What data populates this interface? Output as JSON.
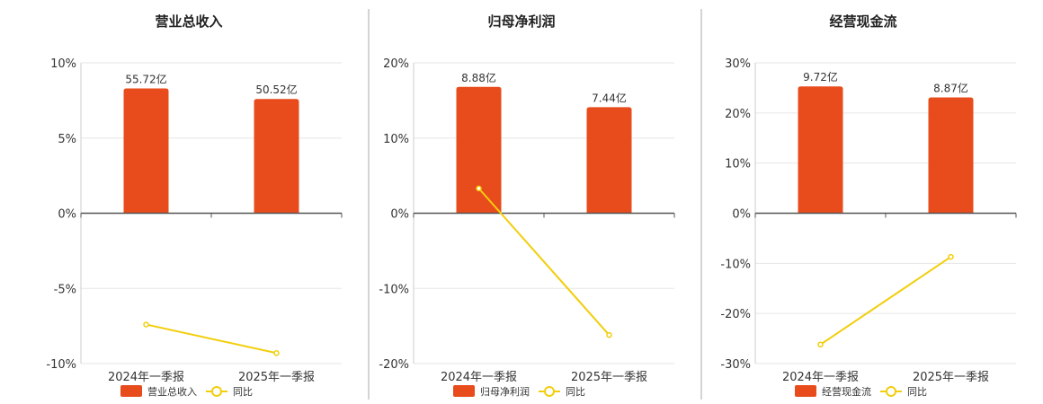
{
  "colors": {
    "bar": "#E84C1C",
    "line": "#F2CE0C",
    "grid": "#E6E6E6",
    "axis": "#555555",
    "divider": "#AAAAAA"
  },
  "chart_data": [
    {
      "type": "bar",
      "title": "营业总收入",
      "categories": [
        "2024年一季报",
        "2025年一季报"
      ],
      "series": [
        {
          "name": "营业总收入",
          "type": "bar",
          "values": [
            8.3,
            7.6
          ],
          "labels": [
            "55.72亿",
            "50.52亿"
          ]
        },
        {
          "name": "同比",
          "type": "line",
          "values": [
            -7.4,
            -9.3
          ]
        }
      ],
      "ylim": [
        -10,
        10
      ],
      "yticks": [
        -10,
        -5,
        0,
        5,
        10
      ],
      "ytick_labels": [
        "-10%",
        "-5%",
        "0%",
        "5%",
        "10%"
      ],
      "grid": true,
      "legend": "bottom"
    },
    {
      "type": "bar",
      "title": "归母净利润",
      "categories": [
        "2024年一季报",
        "2025年一季报"
      ],
      "series": [
        {
          "name": "归母净利润",
          "type": "bar",
          "values": [
            16.8,
            14.1
          ],
          "labels": [
            "8.88亿",
            "7.44亿"
          ]
        },
        {
          "name": "同比",
          "type": "line",
          "values": [
            3.3,
            -16.2
          ]
        }
      ],
      "ylim": [
        -20,
        20
      ],
      "yticks": [
        -20,
        -10,
        0,
        10,
        20
      ],
      "ytick_labels": [
        "-20%",
        "-10%",
        "0%",
        "10%",
        "20%"
      ],
      "grid": true,
      "legend": "bottom"
    },
    {
      "type": "bar",
      "title": "经营现金流",
      "categories": [
        "2024年一季报",
        "2025年一季报"
      ],
      "series": [
        {
          "name": "经营现金流",
          "type": "bar",
          "values": [
            25.3,
            23.1
          ],
          "labels": [
            "9.72亿",
            "8.87亿"
          ]
        },
        {
          "name": "同比",
          "type": "line",
          "values": [
            -26.2,
            -8.7
          ]
        }
      ],
      "ylim": [
        -30,
        30
      ],
      "yticks": [
        -30,
        -20,
        -10,
        0,
        10,
        20,
        30
      ],
      "ytick_labels": [
        "-30%",
        "-20%",
        "-10%",
        "0%",
        "10%",
        "20%",
        "30%"
      ],
      "grid": true,
      "legend": "bottom"
    }
  ]
}
